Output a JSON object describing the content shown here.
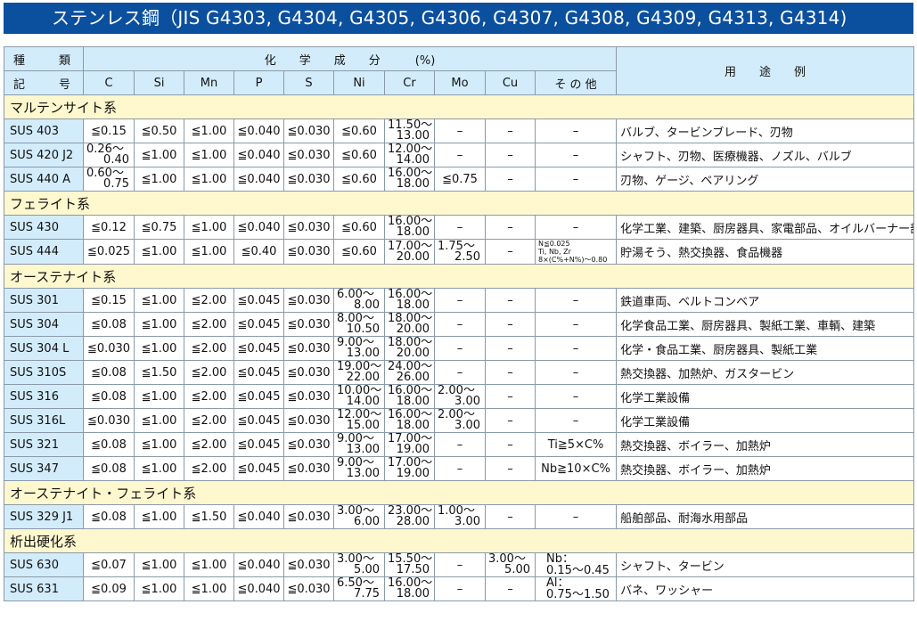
{
  "title": "ステンレス鋼（JIS G4303, G4304, G4305, G4306, G4307, G4308, G4309, G4313, G4314)",
  "header": {
    "grade_top": [
      "種",
      "類"
    ],
    "grade_bottom": [
      "記",
      "号"
    ],
    "chem": "化　　学　　成　　分　　　(%)",
    "use": "用　　途　　例",
    "cols": [
      "C",
      "Si",
      "Mn",
      "P",
      "S",
      "Ni",
      "Cr",
      "Mo",
      "Cu",
      "そ の 他"
    ]
  },
  "sections": [
    {
      "name": "マルテンサイト系",
      "rows": [
        {
          "grade": "SUS 403",
          "vals": [
            "≦0.15",
            "≦0.50",
            "≦1.00",
            "≦0.040",
            "≦0.030",
            "≦0.60",
            [
              "11.50〜",
              "13.00"
            ],
            "–",
            "–",
            "–"
          ],
          "use": "バルブ、タービンブレード、刃物"
        },
        {
          "grade": "SUS 420 J2",
          "vals": [
            [
              "0.26〜",
              "0.40"
            ],
            "≦1.00",
            "≦1.00",
            "≦0.040",
            "≦0.030",
            "≦0.60",
            [
              "12.00〜",
              "14.00"
            ],
            "–",
            "–",
            "–"
          ],
          "use": "シャフト、刃物、医療機器、ノズル、バルブ"
        },
        {
          "grade": "SUS 440 A",
          "vals": [
            [
              "0.60〜",
              "0.75"
            ],
            "≦1.00",
            "≦1.00",
            "≦0.040",
            "≦0.030",
            "≦0.60",
            [
              "16.00〜",
              "18.00"
            ],
            "≦0.75",
            "–",
            "–"
          ],
          "use": "刃物、ゲージ、ベアリング"
        }
      ]
    },
    {
      "name": "フェライト系",
      "rows": [
        {
          "grade": "SUS 430",
          "vals": [
            "≦0.12",
            "≦0.75",
            "≦1.00",
            "≦0.040",
            "≦0.030",
            "≦0.60",
            [
              "16.00〜",
              "18.00"
            ],
            "–",
            "–",
            "–"
          ],
          "use": "化学工業、建築、厨房器具、家電部品、オイルバーナー部品"
        },
        {
          "grade": "SUS 444",
          "vals": [
            "≦0.025",
            "≦1.00",
            "≦1.00",
            "≦0.40",
            "≦0.030",
            "≦0.60",
            [
              "17.00〜",
              "20.00"
            ],
            [
              "1.75〜",
              "2.50"
            ],
            "–",
            {
              "small": [
                "N≦0.025",
                "Ti, Nb, Zr",
                "8×(C%+N%)〜0.80"
              ]
            }
          ],
          "use": "貯湯そう、熱交換器、食品機器"
        }
      ]
    },
    {
      "name": "オーステナイト系",
      "rows": [
        {
          "grade": "SUS 301",
          "vals": [
            "≦0.15",
            "≦1.00",
            "≦2.00",
            "≦0.045",
            "≦0.030",
            [
              "6.00〜",
              "8.00"
            ],
            [
              "16.00〜",
              "18.00"
            ],
            "–",
            "–",
            "–"
          ],
          "use": "鉄道車両、ベルトコンベア"
        },
        {
          "grade": "SUS 304",
          "vals": [
            "≦0.08",
            "≦1.00",
            "≦2.00",
            "≦0.045",
            "≦0.030",
            [
              "8.00〜",
              "10.50"
            ],
            [
              "18.00〜",
              "20.00"
            ],
            "–",
            "–",
            "–"
          ],
          "use": "化学食品工業、厨房器具、製紙工業、車輌、建築"
        },
        {
          "grade": "SUS 304 L",
          "vals": [
            "≦0.030",
            "≦1.00",
            "≦2.00",
            "≦0.045",
            "≦0.030",
            [
              "9.00〜",
              "13.00"
            ],
            [
              "18.00〜",
              "20.00"
            ],
            "–",
            "–",
            "–"
          ],
          "use": "化学・食品工業、厨房器具、製紙工業"
        },
        {
          "grade": "SUS 310S",
          "vals": [
            "≦0.08",
            "≦1.50",
            "≦2.00",
            "≦0.045",
            "≦0.030",
            [
              "19.00〜",
              "22.00"
            ],
            [
              "24.00〜",
              "26.00"
            ],
            "–",
            "–",
            "–"
          ],
          "use": "熱交換器、加熱炉、ガスタービン"
        },
        {
          "grade": "SUS 316",
          "vals": [
            "≦0.08",
            "≦1.00",
            "≦2.00",
            "≦0.045",
            "≦0.030",
            [
              "10.00〜",
              "14.00"
            ],
            [
              "16.00〜",
              "18.00"
            ],
            [
              "2.00〜",
              "3.00"
            ],
            "–",
            "–"
          ],
          "use": "化学工業設備"
        },
        {
          "grade": "SUS 316L",
          "vals": [
            "≦0.030",
            "≦1.00",
            "≦2.00",
            "≦0.045",
            "≦0.030",
            [
              "12.00〜",
              "15.00"
            ],
            [
              "16.00〜",
              "18.00"
            ],
            [
              "2.00〜",
              "3.00"
            ],
            "–",
            "–"
          ],
          "use": "化学工業設備"
        },
        {
          "grade": "SUS 321",
          "vals": [
            "≦0.08",
            "≦1.00",
            "≦2.00",
            "≦0.045",
            "≦0.030",
            [
              "9.00〜",
              "13.00"
            ],
            [
              "17.00〜",
              "19.00"
            ],
            "–",
            "–",
            "Ti≧5×C%"
          ],
          "use": "熱交換器、ボイラー、加熱炉"
        },
        {
          "grade": "SUS 347",
          "vals": [
            "≦0.08",
            "≦1.00",
            "≦2.00",
            "≦0.045",
            "≦0.030",
            [
              "9.00〜",
              "13.00"
            ],
            [
              "17.00〜",
              "19.00"
            ],
            "–",
            "–",
            "Nb≧10×C%"
          ],
          "use": "熱交換器、ボイラー、加熱炉"
        }
      ]
    },
    {
      "name": "オーステナイト・フェライト系",
      "rows": [
        {
          "grade": "SUS 329 J1",
          "vals": [
            "≦0.08",
            "≦1.00",
            "≦1.50",
            "≦0.040",
            "≦0.030",
            [
              "3.00〜",
              "6.00"
            ],
            [
              "23.00〜",
              "28.00"
            ],
            [
              "1.00〜",
              "3.00"
            ],
            "–",
            "–"
          ],
          "use": "船舶部品、耐海水用部品"
        }
      ]
    },
    {
      "name": "析出硬化系",
      "rows": [
        {
          "grade": "SUS 630",
          "vals": [
            "≦0.07",
            "≦1.00",
            "≦1.00",
            "≦0.040",
            "≦0.030",
            [
              "3.00〜",
              "5.00"
            ],
            [
              "15.50〜",
              "17.50"
            ],
            "–",
            [
              "3.00〜",
              "5.00"
            ],
            {
              "two": [
                "Nb：",
                "0.15〜0.45"
              ]
            }
          ],
          "use": "シャフト、タービン"
        },
        {
          "grade": "SUS 631",
          "vals": [
            "≦0.09",
            "≦1.00",
            "≦1.00",
            "≦0.040",
            "≦0.030",
            [
              "6.50〜",
              "7.75"
            ],
            [
              "16.00〜",
              "18.00"
            ],
            "–",
            "–",
            {
              "two": [
                "Al：",
                "0.75〜1.50"
              ]
            }
          ],
          "use": "バネ、ワッシャー"
        }
      ]
    }
  ]
}
